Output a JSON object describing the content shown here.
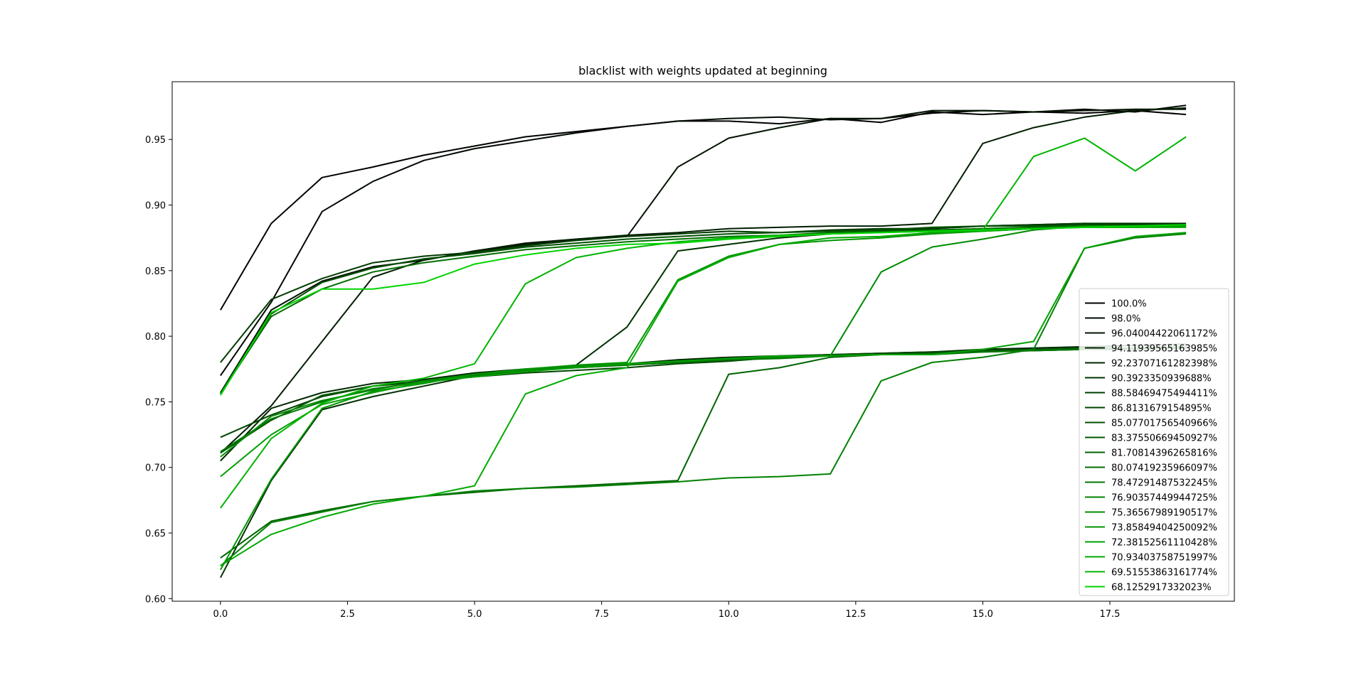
{
  "chart_data": {
    "type": "line",
    "title": "blacklist with weights updated at beginning",
    "xlabel": "",
    "ylabel": "",
    "xlim": [
      -0.95,
      19.95
    ],
    "ylim": [
      0.598,
      0.994
    ],
    "xticks": [
      0.0,
      2.5,
      5.0,
      7.5,
      10.0,
      12.5,
      15.0,
      17.5
    ],
    "xtick_labels": [
      "0.0",
      "2.5",
      "5.0",
      "7.5",
      "10.0",
      "12.5",
      "15.0",
      "17.5"
    ],
    "yticks": [
      0.6,
      0.65,
      0.7,
      0.75,
      0.8,
      0.85,
      0.9,
      0.95
    ],
    "ytick_labels": [
      "0.60",
      "0.65",
      "0.70",
      "0.75",
      "0.80",
      "0.85",
      "0.90",
      "0.95"
    ],
    "grid": false,
    "legend_position": "lower-right",
    "x": [
      0,
      1,
      2,
      3,
      4,
      5,
      6,
      7,
      8,
      9,
      10,
      11,
      12,
      13,
      14,
      15,
      16,
      17,
      18,
      19
    ],
    "series": [
      {
        "name": "100.0%",
        "color": "#000000",
        "values": [
          0.82,
          0.886,
          0.921,
          0.929,
          0.938,
          0.945,
          0.952,
          0.956,
          0.96,
          0.964,
          0.964,
          0.962,
          0.966,
          0.963,
          0.971,
          0.969,
          0.971,
          0.97,
          0.972,
          0.969
        ]
      },
      {
        "name": "98.0%",
        "color": "#000900",
        "values": [
          0.77,
          0.826,
          0.895,
          0.918,
          0.934,
          0.943,
          0.949,
          0.955,
          0.96,
          0.964,
          0.966,
          0.967,
          0.965,
          0.966,
          0.97,
          0.972,
          0.971,
          0.973,
          0.971,
          0.976
        ]
      },
      {
        "name": "96.04004422061172%",
        "color": "#001300",
        "values": [
          0.757,
          0.82,
          0.842,
          0.853,
          0.858,
          0.865,
          0.87,
          0.874,
          0.876,
          0.929,
          0.951,
          0.959,
          0.966,
          0.966,
          0.972,
          0.972,
          0.971,
          0.972,
          0.973,
          0.973
        ]
      },
      {
        "name": "94.11939565163985%",
        "color": "#001d00",
        "values": [
          0.711,
          0.747,
          0.796,
          0.845,
          0.858,
          0.865,
          0.871,
          0.874,
          0.877,
          0.879,
          0.882,
          0.883,
          0.884,
          0.884,
          0.886,
          0.947,
          0.959,
          0.967,
          0.972,
          0.974
        ]
      },
      {
        "name": "92.23707161282398%",
        "color": "#002700",
        "values": [
          0.705,
          0.745,
          0.757,
          0.764,
          0.767,
          0.772,
          0.775,
          0.777,
          0.779,
          0.782,
          0.784,
          0.785,
          0.786,
          0.787,
          0.788,
          0.79,
          0.791,
          0.792,
          0.793,
          0.794
        ]
      },
      {
        "name": "90.3923350939688%",
        "color": "#003100",
        "values": [
          0.616,
          0.69,
          0.744,
          0.754,
          0.762,
          0.77,
          0.774,
          0.778,
          0.807,
          0.865,
          0.87,
          0.875,
          0.878,
          0.88,
          0.882,
          0.884,
          0.885,
          0.886,
          0.886,
          0.886
        ]
      },
      {
        "name": "88.58469475494411%",
        "color": "#003b00",
        "values": [
          0.78,
          0.828,
          0.844,
          0.856,
          0.861,
          0.864,
          0.869,
          0.873,
          0.876,
          0.878,
          0.88,
          0.879,
          0.881,
          0.882,
          0.882,
          0.884,
          0.885,
          0.886,
          0.885,
          0.885
        ]
      },
      {
        "name": "86.8131679154895%",
        "color": "#004500",
        "values": [
          0.723,
          0.74,
          0.754,
          0.762,
          0.766,
          0.769,
          0.772,
          0.774,
          0.776,
          0.779,
          0.781,
          0.784,
          0.786,
          0.787,
          0.788,
          0.789,
          0.789,
          0.79,
          0.79,
          0.791
        ]
      },
      {
        "name": "85.07701756540966%",
        "color": "#004f00",
        "values": [
          0.757,
          0.817,
          0.841,
          0.852,
          0.859,
          0.863,
          0.868,
          0.871,
          0.874,
          0.876,
          0.878,
          0.879,
          0.88,
          0.881,
          0.883,
          0.884,
          0.884,
          0.885,
          0.885,
          0.885
        ]
      },
      {
        "name": "83.37550669450927%",
        "color": "#005900",
        "values": [
          0.711,
          0.736,
          0.755,
          0.762,
          0.765,
          0.771,
          0.774,
          0.776,
          0.778,
          0.78,
          0.782,
          0.784,
          0.786,
          0.786,
          0.787,
          0.789,
          0.79,
          0.791,
          0.791,
          0.792
        ]
      },
      {
        "name": "81.70814396265816%",
        "color": "#006300",
        "values": [
          0.631,
          0.659,
          0.667,
          0.674,
          0.678,
          0.681,
          0.684,
          0.686,
          0.688,
          0.69,
          0.771,
          0.776,
          0.784,
          0.786,
          0.787,
          0.788,
          0.789,
          0.79,
          0.791,
          0.791
        ]
      },
      {
        "name": "80.07419235966097%",
        "color": "#006d00",
        "values": [
          0.756,
          0.815,
          0.836,
          0.849,
          0.856,
          0.861,
          0.866,
          0.869,
          0.872,
          0.874,
          0.876,
          0.877,
          0.879,
          0.88,
          0.881,
          0.882,
          0.883,
          0.884,
          0.884,
          0.884
        ]
      },
      {
        "name": "78.47291487532245%",
        "color": "#007700",
        "values": [
          0.712,
          0.737,
          0.75,
          0.76,
          0.765,
          0.77,
          0.774,
          0.776,
          0.778,
          0.78,
          0.782,
          0.783,
          0.785,
          0.786,
          0.786,
          0.788,
          0.789,
          0.79,
          0.791,
          0.792
        ]
      },
      {
        "name": "76.90357449944725%",
        "color": "#008100",
        "values": [
          0.625,
          0.658,
          0.666,
          0.674,
          0.678,
          0.682,
          0.684,
          0.685,
          0.687,
          0.689,
          0.692,
          0.693,
          0.695,
          0.766,
          0.78,
          0.784,
          0.79,
          0.867,
          0.875,
          0.878
        ]
      },
      {
        "name": "75.36567989190517%",
        "color": "#008b00",
        "values": [
          0.708,
          0.739,
          0.751,
          0.759,
          0.766,
          0.771,
          0.774,
          0.777,
          0.779,
          0.781,
          0.783,
          0.784,
          0.785,
          0.849,
          0.868,
          0.874,
          0.881,
          0.884,
          0.884,
          0.884
        ]
      },
      {
        "name": "73.85849404250092%",
        "color": "#009500",
        "values": [
          0.622,
          0.691,
          0.745,
          0.758,
          0.764,
          0.771,
          0.775,
          0.778,
          0.78,
          0.843,
          0.861,
          0.87,
          0.873,
          0.875,
          0.878,
          0.88,
          0.882,
          0.883,
          0.883,
          0.884
        ]
      },
      {
        "name": "72.38152561110428%",
        "color": "#00a000",
        "values": [
          0.693,
          0.725,
          0.748,
          0.757,
          0.765,
          0.769,
          0.773,
          0.776,
          0.779,
          0.781,
          0.783,
          0.785,
          0.785,
          0.786,
          0.786,
          0.79,
          0.796,
          0.867,
          0.876,
          0.879
        ]
      },
      {
        "name": "70.93403758751997%",
        "color": "#00aa00",
        "values": [
          0.625,
          0.649,
          0.662,
          0.672,
          0.678,
          0.686,
          0.756,
          0.77,
          0.776,
          0.842,
          0.86,
          0.87,
          0.875,
          0.876,
          0.879,
          0.88,
          0.882,
          0.883,
          0.883,
          0.883
        ]
      },
      {
        "name": "69.51553863161774%",
        "color": "#00b400",
        "values": [
          0.669,
          0.722,
          0.749,
          0.762,
          0.768,
          0.779,
          0.84,
          0.86,
          0.867,
          0.872,
          0.875,
          0.877,
          0.878,
          0.879,
          0.88,
          0.881,
          0.937,
          0.951,
          0.926,
          0.952
        ]
      },
      {
        "name": "68.1252917332023%",
        "color": "#00d400",
        "values": [
          0.755,
          0.818,
          0.836,
          0.836,
          0.841,
          0.855,
          0.862,
          0.867,
          0.87,
          0.871,
          0.874,
          0.876,
          0.878,
          0.879,
          0.88,
          0.881,
          0.882,
          0.883,
          0.884,
          0.885
        ]
      }
    ]
  }
}
